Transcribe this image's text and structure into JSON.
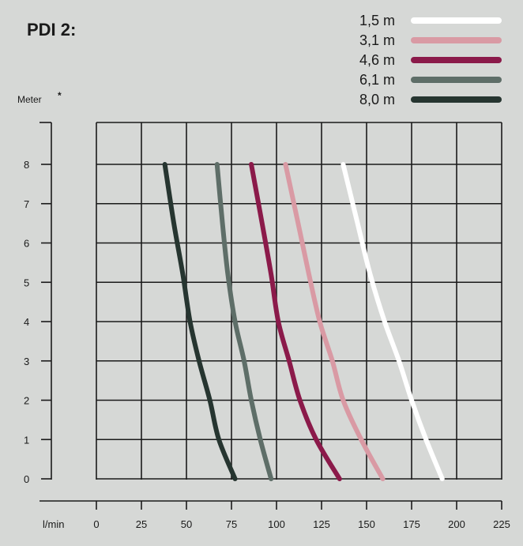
{
  "chart_data": {
    "type": "line",
    "title": "PDI 2:",
    "ylabel": "Meter",
    "ylabel_marker": "*",
    "xlabel": "l/min",
    "xlim": [
      0,
      225
    ],
    "ylim": [
      0,
      8
    ],
    "x_ticks": [
      "0",
      "25",
      "50",
      "75",
      "100",
      "125",
      "150",
      "175",
      "200",
      "225"
    ],
    "y_ticks": [
      "0",
      "1",
      "2",
      "3",
      "4",
      "5",
      "6",
      "7",
      "8"
    ],
    "grid": true,
    "legend_position": "top-right",
    "series": [
      {
        "name": "1,5 m",
        "color": "#ffffff",
        "x": [
          137,
          145,
          152,
          160,
          168,
          175,
          183,
          192
        ],
        "y": [
          8,
          6.5,
          5.2,
          4,
          3,
          2,
          1,
          0
        ]
      },
      {
        "name": "3,1 m",
        "color": "#d99aa4",
        "x": [
          105,
          112,
          118,
          124,
          131,
          137,
          147,
          159
        ],
        "y": [
          8,
          6.5,
          5.2,
          4,
          3,
          2,
          1,
          0
        ]
      },
      {
        "name": "4,6 m",
        "color": "#8b1a4a",
        "x": [
          86,
          92,
          97,
          101,
          107,
          113,
          122,
          135
        ],
        "y": [
          8,
          6.5,
          5.2,
          4,
          3,
          2,
          1,
          0
        ]
      },
      {
        "name": "6,1 m",
        "color": "#5e6e68",
        "x": [
          67,
          70,
          73,
          77,
          82,
          86,
          91,
          97
        ],
        "y": [
          8,
          6.5,
          5.2,
          4,
          3,
          2,
          1,
          0
        ]
      },
      {
        "name": "8,0 m",
        "color": "#263530",
        "x": [
          38,
          43,
          48,
          52,
          57,
          63,
          68,
          77
        ],
        "y": [
          8,
          6.5,
          5.2,
          4,
          3,
          2,
          1,
          0
        ]
      }
    ]
  }
}
